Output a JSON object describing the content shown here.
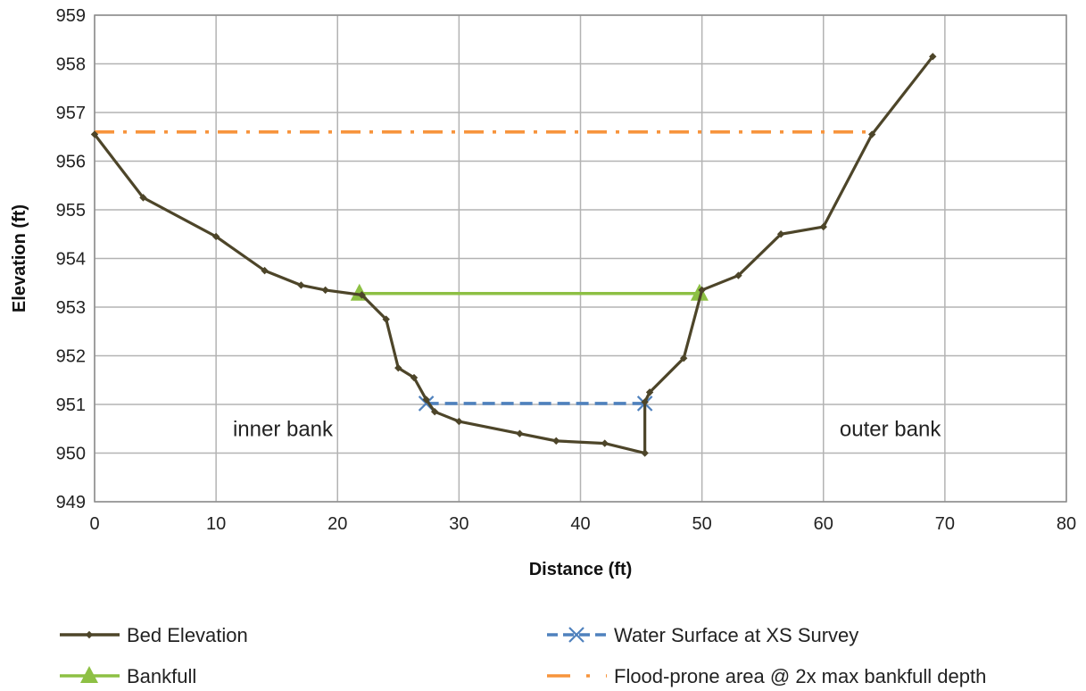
{
  "chart_data": {
    "type": "line",
    "xlabel": "Distance (ft)",
    "ylabel": "Elevation (ft)",
    "xlim": [
      0,
      80
    ],
    "ylim": [
      949,
      959
    ],
    "x_ticks": [
      0,
      10,
      20,
      30,
      40,
      50,
      60,
      70,
      80
    ],
    "y_ticks": [
      949,
      950,
      951,
      952,
      953,
      954,
      955,
      956,
      957,
      958,
      959
    ],
    "grid": true,
    "legend_position": "bottom",
    "annotations": [
      {
        "text": "inner bank",
        "x": 15.5,
        "y": 950.5
      },
      {
        "text": "outer bank",
        "x": 65.5,
        "y": 950.5
      }
    ],
    "series": [
      {
        "name": "Bed Elevation",
        "color": "#4d4529",
        "style": "solid",
        "marker": "diamond",
        "points": [
          [
            0,
            956.55
          ],
          [
            4,
            955.25
          ],
          [
            10,
            954.45
          ],
          [
            14,
            953.75
          ],
          [
            17,
            953.45
          ],
          [
            19,
            953.35
          ],
          [
            22,
            953.25
          ],
          [
            24,
            952.75
          ],
          [
            25,
            951.75
          ],
          [
            26.3,
            951.55
          ],
          [
            27.3,
            951.1
          ],
          [
            28,
            950.85
          ],
          [
            30,
            950.65
          ],
          [
            35,
            950.4
          ],
          [
            38,
            950.25
          ],
          [
            42,
            950.2
          ],
          [
            45.3,
            950.0
          ],
          [
            45.3,
            951.05
          ],
          [
            45.7,
            951.25
          ],
          [
            48.5,
            951.95
          ],
          [
            50,
            953.35
          ],
          [
            53,
            953.65
          ],
          [
            56.5,
            954.5
          ],
          [
            60,
            954.65
          ],
          [
            64,
            956.55
          ],
          [
            69,
            958.15
          ]
        ]
      },
      {
        "name": "Water Surface at XS Survey",
        "color": "#4f81bd",
        "style": "dashed",
        "marker": "x",
        "points": [
          [
            27.3,
            951.02
          ],
          [
            45.3,
            951.02
          ]
        ]
      },
      {
        "name": "Bankfull",
        "color": "#8dc044",
        "style": "solid",
        "marker": "triangle",
        "points": [
          [
            21.8,
            953.28
          ],
          [
            49.8,
            953.28
          ]
        ]
      },
      {
        "name": "Flood-prone area @ 2x max bankfull depth",
        "color": "#f7943c",
        "style": "dashdot",
        "marker": "none",
        "points": [
          [
            0,
            956.6
          ],
          [
            64,
            956.6
          ]
        ]
      }
    ]
  }
}
